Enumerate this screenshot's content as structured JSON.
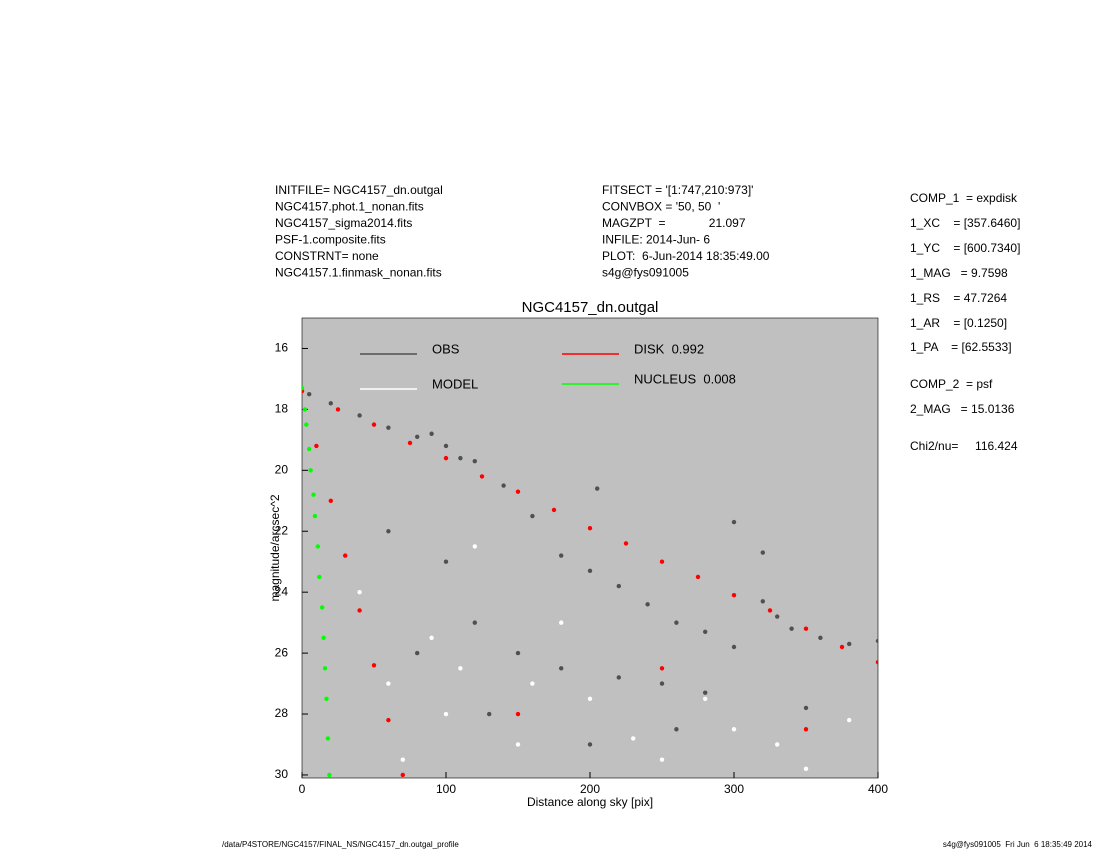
{
  "header": {
    "left": [
      "INITFILE= NGC4157_dn.outgal",
      "NGC4157.phot.1_nonan.fits",
      "NGC4157_sigma2014.fits",
      "PSF-1.composite.fits",
      "CONSTRNT= none",
      "NGC4157.1.finmask_nonan.fits"
    ],
    "middle": [
      "FITSECT = '[1:747,210:973]'",
      "CONVBOX = '50, 50  '",
      "MAGZPT  =             21.097",
      "INFILE: 2014-Jun- 6",
      "PLOT:  6-Jun-2014 18:35:49.00",
      "s4g@fys091005"
    ],
    "right": [
      "COMP_1  = expdisk",
      "1_XC    = [357.6460]",
      "1_YC    = [600.7340]",
      "1_MAG   = 9.7598",
      "1_RS    = 47.7264",
      "1_AR    = [0.1250]",
      "1_PA    = [62.5533]",
      "COMP_2  = psf",
      "2_MAG   = 15.0136",
      "Chi2/nu=     116.424"
    ]
  },
  "footer": {
    "left": "/data/P4STORE/NGC4157/FINAL_NS/NGC4157_dn.outgal_profile",
    "right": "s4g@fys091005  Fri Jun  6 18:35:49 2014"
  },
  "chart_data": {
    "type": "scatter",
    "title": "NGC4157_dn.outgal",
    "x_label": "Distance along sky [pix]",
    "y_label": "magnitude/arcsec^2",
    "xlim": [
      0,
      400
    ],
    "xticks": [
      0,
      100,
      200,
      300,
      400
    ],
    "ylim": [
      30.1,
      15
    ],
    "yticks": [
      16,
      18,
      20,
      22,
      24,
      26,
      28,
      30
    ],
    "background": "#c0c0c0",
    "series": [
      {
        "name": "OBS",
        "color": "#505050",
        "x": [
          5,
          20,
          40,
          60,
          80,
          90,
          100,
          110,
          120,
          140,
          160,
          180,
          200,
          220,
          240,
          260,
          280,
          300,
          320,
          330,
          340,
          360,
          380,
          400,
          205,
          300,
          320,
          100,
          120,
          150,
          180,
          220,
          250,
          280,
          80,
          130,
          200,
          260,
          350,
          60
        ],
        "values": [
          17.5,
          17.8,
          18.2,
          18.6,
          18.9,
          18.8,
          19.2,
          19.6,
          19.7,
          20.5,
          21.5,
          22.8,
          23.3,
          23.8,
          24.4,
          25,
          25.3,
          25.8,
          24.3,
          24.8,
          25.2,
          25.5,
          25.7,
          25.6,
          20.6,
          21.7,
          22.7,
          23,
          25,
          26,
          26.5,
          26.8,
          27,
          27.3,
          26,
          28,
          29,
          28.5,
          27.8,
          22
        ]
      },
      {
        "name": "MODEL",
        "color": "#ffffff",
        "x": [
          40,
          60,
          100,
          150,
          200,
          250,
          300,
          350,
          120,
          180,
          90,
          160,
          230,
          280,
          330,
          380,
          70,
          110
        ],
        "values": [
          24,
          27,
          28,
          29,
          27.5,
          29.5,
          28.5,
          29.8,
          22.5,
          25,
          25.5,
          27,
          28.8,
          27.5,
          29,
          28.2,
          29.5,
          26.5
        ]
      },
      {
        "name": "DISK  0.992",
        "color": "#ff0000",
        "x": [
          0,
          25,
          50,
          75,
          100,
          125,
          150,
          175,
          200,
          225,
          250,
          275,
          300,
          325,
          350,
          375,
          400,
          10,
          20,
          30,
          40,
          50,
          60,
          70,
          150,
          250,
          350
        ],
        "values": [
          17.4,
          18,
          18.5,
          19.1,
          19.6,
          20.2,
          20.7,
          21.3,
          21.9,
          22.4,
          23,
          23.5,
          24.1,
          24.6,
          25.2,
          25.8,
          26.3,
          19.2,
          21,
          22.8,
          24.6,
          26.4,
          28.2,
          30,
          28,
          26.5,
          28.5
        ]
      },
      {
        "name": "NUCLEUS  0.008",
        "color": "#00ff00",
        "x": [
          0,
          2,
          3,
          5,
          6,
          8,
          9,
          11,
          12,
          14,
          15,
          16,
          17,
          18,
          19
        ],
        "values": [
          17.3,
          18,
          18.5,
          19.3,
          20,
          20.8,
          21.5,
          22.5,
          23.5,
          24.5,
          25.5,
          26.5,
          27.5,
          28.8,
          30
        ]
      }
    ]
  }
}
